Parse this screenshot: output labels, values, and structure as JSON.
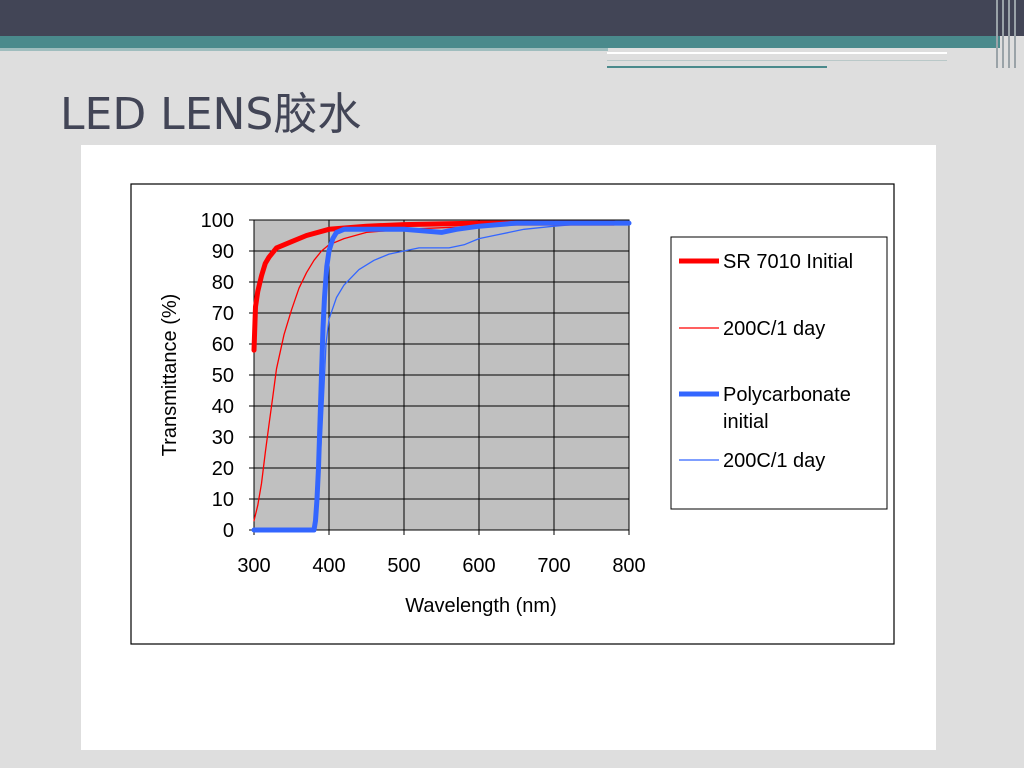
{
  "slide": {
    "title": "LED LENS胶水"
  },
  "colors": {
    "header_dark": "#424556",
    "header_teal": "#4a8a8c",
    "slide_bg": "#dedede",
    "plot_bg": "#c0c0c0",
    "red": "#ff0000",
    "blue": "#3366ff"
  },
  "chart_data": {
    "type": "line",
    "title": "",
    "xlabel": "Wavelength (nm)",
    "ylabel": "Transmittance (%)",
    "xlim": [
      300,
      800
    ],
    "ylim": [
      0,
      100
    ],
    "x_ticks": [
      "300",
      "400",
      "500",
      "600",
      "700",
      "800"
    ],
    "y_ticks": [
      "0",
      "10",
      "20",
      "30",
      "40",
      "50",
      "60",
      "70",
      "80",
      "90",
      "100"
    ],
    "grid": true,
    "legend_position": "right",
    "series": [
      {
        "name": "SR 7010 Initial",
        "color": "#ff0000",
        "line": "thick",
        "points": [
          [
            300,
            58
          ],
          [
            302,
            72
          ],
          [
            305,
            77
          ],
          [
            310,
            82
          ],
          [
            315,
            86
          ],
          [
            320,
            88
          ],
          [
            330,
            91
          ],
          [
            340,
            92
          ],
          [
            350,
            93
          ],
          [
            370,
            95
          ],
          [
            400,
            97
          ],
          [
            450,
            98
          ],
          [
            500,
            98.5
          ],
          [
            600,
            99
          ],
          [
            700,
            99
          ],
          [
            780,
            99
          ]
        ]
      },
      {
        "name": "200C/1 day",
        "color": "#ff0000",
        "line": "thin",
        "points": [
          [
            300,
            3
          ],
          [
            305,
            8
          ],
          [
            310,
            15
          ],
          [
            315,
            25
          ],
          [
            320,
            34
          ],
          [
            325,
            43
          ],
          [
            330,
            52
          ],
          [
            340,
            63
          ],
          [
            350,
            71
          ],
          [
            360,
            78
          ],
          [
            370,
            83
          ],
          [
            380,
            87
          ],
          [
            390,
            90
          ],
          [
            400,
            92
          ],
          [
            420,
            94
          ],
          [
            450,
            96
          ],
          [
            500,
            97
          ],
          [
            600,
            98
          ],
          [
            700,
            99
          ],
          [
            780,
            99
          ]
        ]
      },
      {
        "name": "Polycarbonate initial",
        "color": "#3366ff",
        "line": "thick",
        "points": [
          [
            300,
            0
          ],
          [
            380,
            0
          ],
          [
            382,
            3
          ],
          [
            384,
            10
          ],
          [
            386,
            20
          ],
          [
            388,
            35
          ],
          [
            390,
            50
          ],
          [
            392,
            65
          ],
          [
            394,
            75
          ],
          [
            397,
            85
          ],
          [
            400,
            90
          ],
          [
            405,
            94
          ],
          [
            410,
            96
          ],
          [
            420,
            97
          ],
          [
            450,
            97
          ],
          [
            500,
            97
          ],
          [
            550,
            96
          ],
          [
            570,
            97
          ],
          [
            600,
            98
          ],
          [
            650,
            99
          ],
          [
            700,
            99
          ],
          [
            800,
            99
          ]
        ]
      },
      {
        "name": "200C/1 day",
        "color": "#3366ff",
        "line": "thin",
        "points": [
          [
            300,
            0
          ],
          [
            380,
            0
          ],
          [
            383,
            5
          ],
          [
            386,
            15
          ],
          [
            390,
            30
          ],
          [
            393,
            45
          ],
          [
            396,
            60
          ],
          [
            400,
            68
          ],
          [
            410,
            75
          ],
          [
            420,
            79
          ],
          [
            440,
            84
          ],
          [
            460,
            87
          ],
          [
            480,
            89
          ],
          [
            500,
            90
          ],
          [
            520,
            91
          ],
          [
            540,
            91
          ],
          [
            560,
            91
          ],
          [
            580,
            92
          ],
          [
            600,
            94
          ],
          [
            620,
            95
          ],
          [
            640,
            96
          ],
          [
            660,
            97
          ],
          [
            700,
            98
          ],
          [
            750,
            99
          ],
          [
            800,
            99
          ]
        ]
      }
    ]
  }
}
